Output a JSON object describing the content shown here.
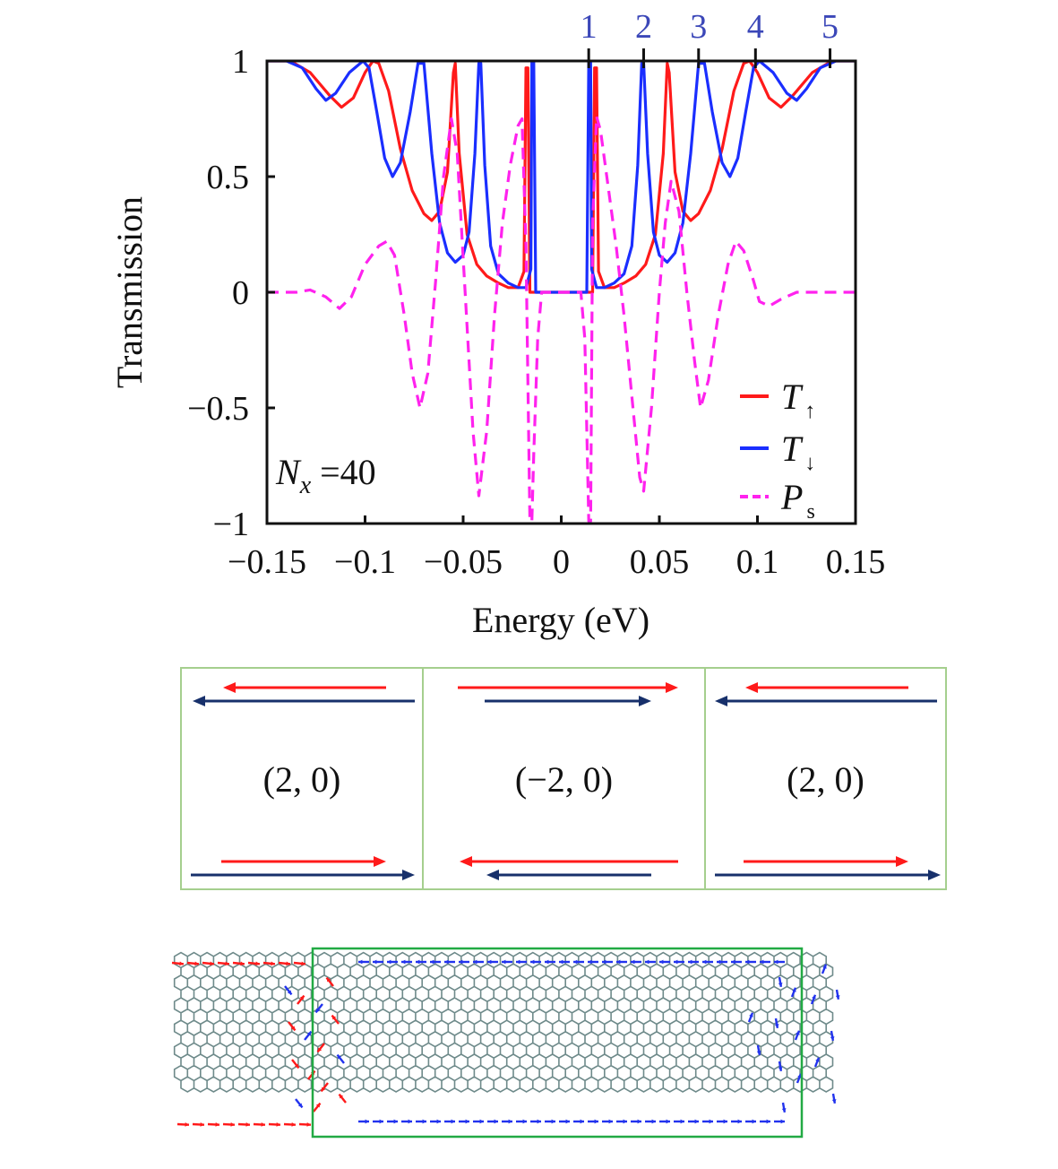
{
  "chart_data": {
    "type": "line",
    "title": "",
    "xlabel": "Energy (eV)",
    "ylabel": "Transmission",
    "xlim": [
      -0.15,
      0.15
    ],
    "ylim": [
      -1,
      1
    ],
    "x_ticks": [
      "−0.15",
      "−0.1",
      "−0.05",
      "0",
      "0.05",
      "0.1",
      "0.15"
    ],
    "y_ticks": [
      "1",
      "0.5",
      "0",
      "−0.5",
      "−1"
    ],
    "annotation": {
      "symbol": "N",
      "subscript": "x",
      "text": " =40"
    },
    "peak_markers": [
      {
        "label": "1",
        "energy": 0.014
      },
      {
        "label": "2",
        "energy": 0.042
      },
      {
        "label": "3",
        "energy": 0.07
      },
      {
        "label": "4",
        "energy": 0.099
      },
      {
        "label": "5",
        "energy": 0.137
      }
    ],
    "legend": {
      "position": "bottom-right",
      "entries": [
        {
          "symbol": "T",
          "sub": "↑",
          "color": "#ff1a1a",
          "style": "solid"
        },
        {
          "symbol": "T",
          "sub": "↓",
          "color": "#1a2eff",
          "style": "solid"
        },
        {
          "symbol": "P",
          "sub": "s",
          "color": "#ff22ee",
          "style": "dashed"
        }
      ]
    },
    "series": [
      {
        "name": "T_up",
        "color": "#ff1a1a",
        "style": "solid",
        "points": [
          [
            -0.15,
            1
          ],
          [
            -0.138,
            1
          ],
          [
            -0.128,
            0.95
          ],
          [
            -0.118,
            0.85
          ],
          [
            -0.112,
            0.8
          ],
          [
            -0.106,
            0.84
          ],
          [
            -0.1,
            0.95
          ],
          [
            -0.096,
            1
          ],
          [
            -0.093,
            0.99
          ],
          [
            -0.088,
            0.87
          ],
          [
            -0.082,
            0.62
          ],
          [
            -0.076,
            0.44
          ],
          [
            -0.07,
            0.34
          ],
          [
            -0.066,
            0.31
          ],
          [
            -0.062,
            0.35
          ],
          [
            -0.058,
            0.52
          ],
          [
            -0.055,
            0.95
          ],
          [
            -0.054,
            0.99
          ],
          [
            -0.052,
            0.6
          ],
          [
            -0.048,
            0.25
          ],
          [
            -0.043,
            0.12
          ],
          [
            -0.038,
            0.07
          ],
          [
            -0.032,
            0.04
          ],
          [
            -0.027,
            0.02
          ],
          [
            -0.022,
            0.02
          ],
          [
            -0.019,
            0.09
          ],
          [
            -0.018,
            0.97
          ],
          [
            -0.017,
            0.97
          ],
          [
            -0.016,
            0.0
          ],
          [
            -0.012,
            0.0
          ],
          [
            0.012,
            0.0
          ],
          [
            0.016,
            0.0
          ],
          [
            0.017,
            0.97
          ],
          [
            0.018,
            0.97
          ],
          [
            0.019,
            0.09
          ],
          [
            0.022,
            0.02
          ],
          [
            0.027,
            0.02
          ],
          [
            0.032,
            0.04
          ],
          [
            0.038,
            0.07
          ],
          [
            0.043,
            0.12
          ],
          [
            0.048,
            0.25
          ],
          [
            0.052,
            0.6
          ],
          [
            0.054,
            0.99
          ],
          [
            0.055,
            0.95
          ],
          [
            0.058,
            0.52
          ],
          [
            0.062,
            0.35
          ],
          [
            0.066,
            0.31
          ],
          [
            0.07,
            0.34
          ],
          [
            0.076,
            0.44
          ],
          [
            0.082,
            0.62
          ],
          [
            0.088,
            0.87
          ],
          [
            0.093,
            0.99
          ],
          [
            0.096,
            1
          ],
          [
            0.1,
            0.95
          ],
          [
            0.106,
            0.84
          ],
          [
            0.112,
            0.8
          ],
          [
            0.118,
            0.85
          ],
          [
            0.128,
            0.95
          ],
          [
            0.138,
            1
          ],
          [
            0.15,
            1
          ]
        ]
      },
      {
        "name": "T_down",
        "color": "#1a2eff",
        "style": "solid",
        "points": [
          [
            -0.15,
            1
          ],
          [
            -0.14,
            1
          ],
          [
            -0.132,
            0.97
          ],
          [
            -0.125,
            0.88
          ],
          [
            -0.12,
            0.83
          ],
          [
            -0.115,
            0.86
          ],
          [
            -0.108,
            0.95
          ],
          [
            -0.101,
            1
          ],
          [
            -0.098,
            0.97
          ],
          [
            -0.094,
            0.78
          ],
          [
            -0.09,
            0.58
          ],
          [
            -0.086,
            0.5
          ],
          [
            -0.082,
            0.56
          ],
          [
            -0.077,
            0.78
          ],
          [
            -0.073,
            0.99
          ],
          [
            -0.07,
            0.99
          ],
          [
            -0.066,
            0.6
          ],
          [
            -0.062,
            0.3
          ],
          [
            -0.058,
            0.17
          ],
          [
            -0.054,
            0.13
          ],
          [
            -0.05,
            0.16
          ],
          [
            -0.047,
            0.26
          ],
          [
            -0.044,
            0.6
          ],
          [
            -0.042,
            0.99
          ],
          [
            -0.041,
            0.99
          ],
          [
            -0.039,
            0.55
          ],
          [
            -0.036,
            0.2
          ],
          [
            -0.032,
            0.08
          ],
          [
            -0.027,
            0.04
          ],
          [
            -0.022,
            0.02
          ],
          [
            -0.018,
            0.02
          ],
          [
            -0.0155,
            0.1
          ],
          [
            -0.015,
            1.0
          ],
          [
            -0.014,
            1.0
          ],
          [
            -0.013,
            0.0
          ],
          [
            -0.01,
            0.0
          ],
          [
            0.01,
            0.0
          ],
          [
            0.013,
            0.0
          ],
          [
            0.014,
            1.0
          ],
          [
            0.015,
            1.0
          ],
          [
            0.0155,
            0.1
          ],
          [
            0.018,
            0.02
          ],
          [
            0.022,
            0.02
          ],
          [
            0.027,
            0.04
          ],
          [
            0.032,
            0.08
          ],
          [
            0.036,
            0.2
          ],
          [
            0.039,
            0.55
          ],
          [
            0.041,
            0.99
          ],
          [
            0.042,
            0.99
          ],
          [
            0.044,
            0.6
          ],
          [
            0.047,
            0.26
          ],
          [
            0.05,
            0.16
          ],
          [
            0.054,
            0.13
          ],
          [
            0.058,
            0.17
          ],
          [
            0.062,
            0.3
          ],
          [
            0.066,
            0.6
          ],
          [
            0.07,
            0.99
          ],
          [
            0.073,
            0.99
          ],
          [
            0.077,
            0.78
          ],
          [
            0.082,
            0.56
          ],
          [
            0.086,
            0.5
          ],
          [
            0.09,
            0.58
          ],
          [
            0.094,
            0.78
          ],
          [
            0.098,
            0.97
          ],
          [
            0.101,
            1
          ],
          [
            0.108,
            0.95
          ],
          [
            0.115,
            0.86
          ],
          [
            0.12,
            0.83
          ],
          [
            0.125,
            0.88
          ],
          [
            0.132,
            0.97
          ],
          [
            0.14,
            1
          ],
          [
            0.15,
            1
          ]
        ]
      },
      {
        "name": "P_s",
        "color": "#ff22ee",
        "style": "dashed",
        "points": [
          [
            -0.15,
            0.0
          ],
          [
            -0.135,
            0.0
          ],
          [
            -0.128,
            0.01
          ],
          [
            -0.12,
            -0.02
          ],
          [
            -0.113,
            -0.07
          ],
          [
            -0.107,
            -0.02
          ],
          [
            -0.1,
            0.12
          ],
          [
            -0.093,
            0.2
          ],
          [
            -0.089,
            0.22
          ],
          [
            -0.085,
            0.16
          ],
          [
            -0.08,
            -0.1
          ],
          [
            -0.076,
            -0.35
          ],
          [
            -0.072,
            -0.5
          ],
          [
            -0.068,
            -0.35
          ],
          [
            -0.064,
            0.05
          ],
          [
            -0.06,
            0.5
          ],
          [
            -0.056,
            0.75
          ],
          [
            -0.053,
            0.6
          ],
          [
            -0.049,
            0.0
          ],
          [
            -0.045,
            -0.6
          ],
          [
            -0.042,
            -0.88
          ],
          [
            -0.038,
            -0.6
          ],
          [
            -0.034,
            -0.1
          ],
          [
            -0.03,
            0.3
          ],
          [
            -0.026,
            0.55
          ],
          [
            -0.022,
            0.72
          ],
          [
            -0.02,
            0.75
          ],
          [
            -0.018,
            0.2
          ],
          [
            -0.016,
            -0.99
          ],
          [
            -0.015,
            -0.99
          ],
          [
            -0.014,
            -0.7
          ],
          [
            -0.012,
            -0.2
          ],
          [
            -0.01,
            0.0
          ],
          [
            0.01,
            0.0
          ],
          [
            0.012,
            -0.2
          ],
          [
            0.014,
            -0.99
          ],
          [
            0.015,
            -0.99
          ],
          [
            0.016,
            0.3
          ],
          [
            0.018,
            0.76
          ],
          [
            0.02,
            0.7
          ],
          [
            0.024,
            0.45
          ],
          [
            0.028,
            0.2
          ],
          [
            0.032,
            -0.1
          ],
          [
            0.036,
            -0.45
          ],
          [
            0.04,
            -0.8
          ],
          [
            0.042,
            -0.86
          ],
          [
            0.046,
            -0.5
          ],
          [
            0.05,
            0.0
          ],
          [
            0.053,
            0.3
          ],
          [
            0.056,
            0.48
          ],
          [
            0.06,
            0.35
          ],
          [
            0.064,
            0.0
          ],
          [
            0.068,
            -0.3
          ],
          [
            0.071,
            -0.5
          ],
          [
            0.075,
            -0.38
          ],
          [
            0.08,
            -0.1
          ],
          [
            0.085,
            0.12
          ],
          [
            0.089,
            0.22
          ],
          [
            0.093,
            0.18
          ],
          [
            0.098,
            0.05
          ],
          [
            0.101,
            -0.04
          ],
          [
            0.106,
            -0.06
          ],
          [
            0.112,
            -0.03
          ],
          [
            0.12,
            0.0
          ],
          [
            0.128,
            0.0
          ],
          [
            0.15,
            0.0
          ]
        ]
      }
    ]
  },
  "panels": [
    {
      "label": "(2, 0)"
    },
    {
      "label": "(−2, 0)"
    },
    {
      "label": "(2, 0)"
    }
  ],
  "colors": {
    "red_arrow": "#ff1a1a",
    "navy_arrow": "#17306b",
    "panel_border": "#a5cf8e",
    "lattice": "#6e8a8a",
    "highlight_box": "#22aa44",
    "peak_label": "#3b47b8"
  }
}
